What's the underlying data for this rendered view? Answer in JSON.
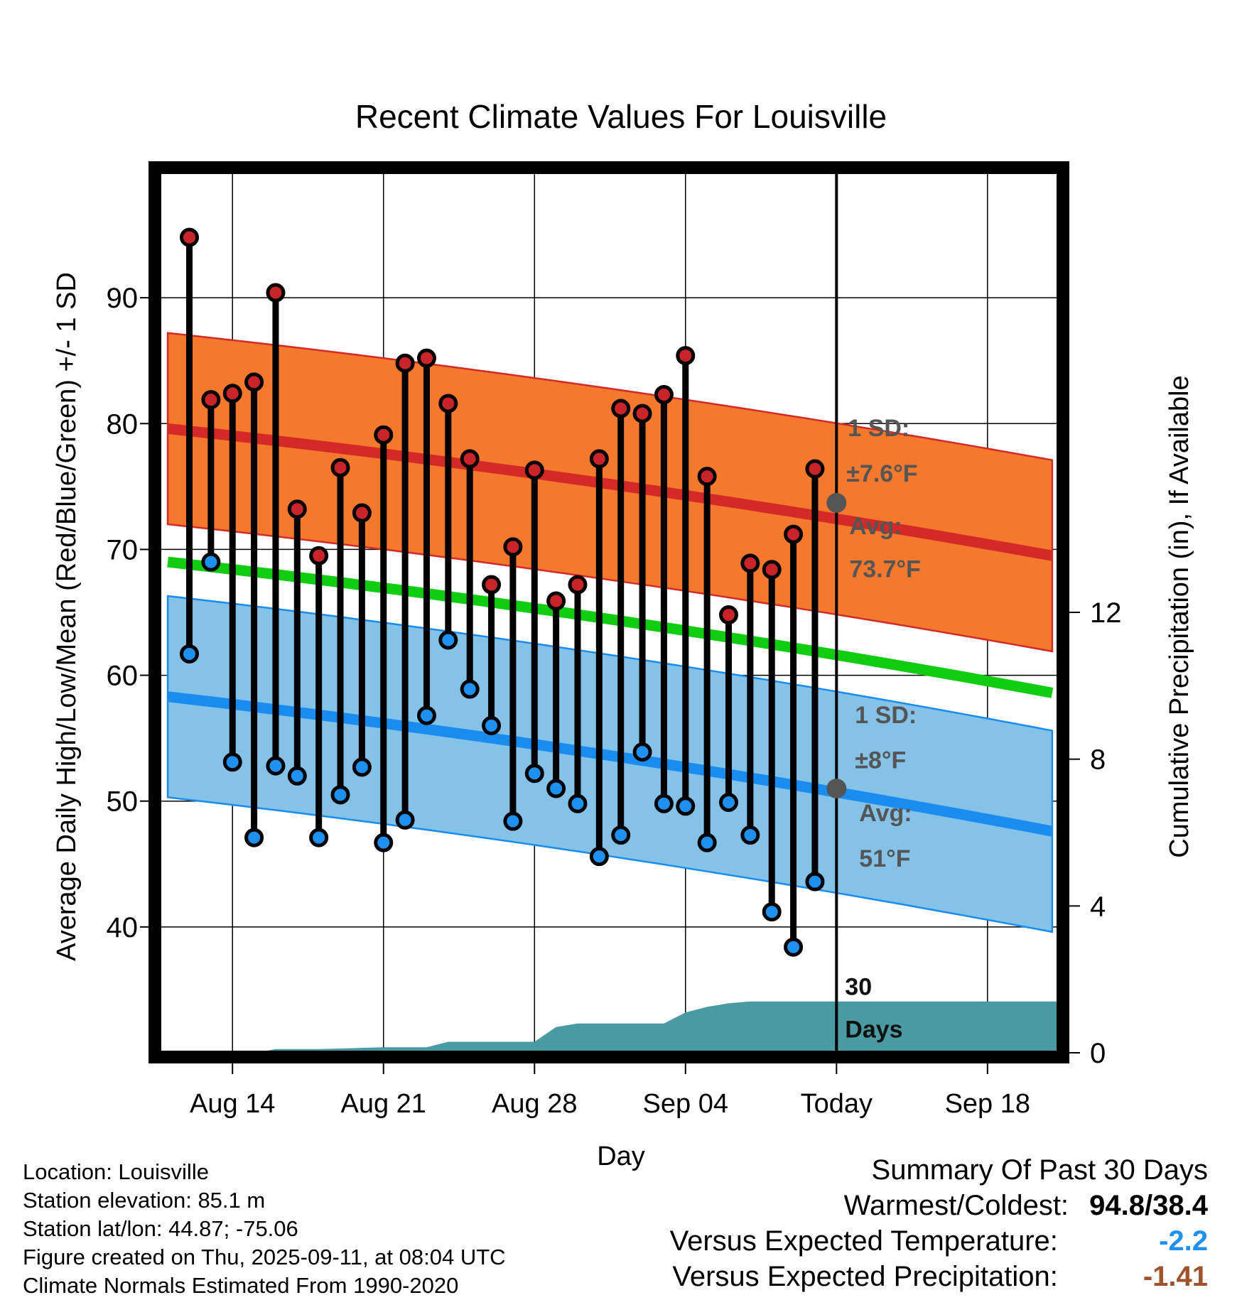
{
  "chart_data": {
    "type": "line",
    "title": "Recent Climate Values For Louisville",
    "xlabel": "Day",
    "ylabel": "Average Daily High/Low/Mean (Red/Blue/Green) +/- 1 SD",
    "y2label": "Cumulative Precipitation (in), If Available",
    "x_range_days": [
      -31.4,
      10.3
    ],
    "ylim": [
      30,
      100
    ],
    "y2lim": [
      0,
      24
    ],
    "x_ticks": [
      {
        "day": -28,
        "label": "Aug 14"
      },
      {
        "day": -21,
        "label": "Aug 21"
      },
      {
        "day": -14,
        "label": "Aug 28"
      },
      {
        "day": -7,
        "label": "Sep 04"
      },
      {
        "day": 0,
        "label": "Today"
      },
      {
        "day": 7,
        "label": "Sep 18"
      }
    ],
    "y_ticks": [
      40,
      50,
      60,
      70,
      80,
      90
    ],
    "y2_ticks": [
      0,
      4,
      8,
      12
    ],
    "grid": true,
    "daily_days": [
      -30,
      -29,
      -28,
      -27,
      -26,
      -25,
      -24,
      -23,
      -22,
      -21,
      -20,
      -19,
      -18,
      -17,
      -16,
      -15,
      -14,
      -13,
      -12,
      -11,
      -10,
      -9,
      -8,
      -7,
      -6,
      -5,
      -4,
      -3,
      -2,
      -1
    ],
    "daily_highs": [
      94.8,
      81.9,
      82.4,
      83.3,
      90.4,
      73.2,
      69.5,
      76.5,
      72.9,
      79.1,
      84.8,
      85.2,
      81.6,
      77.2,
      67.2,
      70.2,
      76.3,
      65.9,
      67.2,
      77.2,
      81.2,
      80.8,
      82.3,
      85.4,
      75.8,
      64.8,
      68.9,
      68.4,
      71.2,
      76.4
    ],
    "daily_lows": [
      61.7,
      69.0,
      53.1,
      47.1,
      52.8,
      52.0,
      47.1,
      50.5,
      52.7,
      46.7,
      48.5,
      56.8,
      62.8,
      58.9,
      56.0,
      48.4,
      52.2,
      51.0,
      49.8,
      45.6,
      47.3,
      53.9,
      49.8,
      49.6,
      46.7,
      49.9,
      47.3,
      41.2,
      38.4,
      43.6
    ],
    "normal_days": [
      -31,
      10
    ],
    "normal_high": {
      "start": 79.6,
      "end": 69.5,
      "sd": 7.6
    },
    "normal_low": {
      "start": 58.3,
      "end": 47.6,
      "sd": 8.0
    },
    "normal_mean": {
      "start": 69.0,
      "end": 58.6
    },
    "precip_cumulative": {
      "days": [
        -31,
        -27,
        -26,
        -24,
        -21,
        -19,
        -18,
        -14,
        -13,
        -12,
        -8,
        -7,
        -6,
        -5,
        -4,
        10.3
      ],
      "values": [
        0,
        0,
        0.1,
        0.1,
        0.15,
        0.15,
        0.3,
        0.3,
        0.7,
        0.8,
        0.8,
        1.1,
        1.25,
        1.35,
        1.4,
        1.4
      ]
    },
    "today_marker": {
      "day": 0,
      "label": "30 Days"
    },
    "annotations": {
      "high_sd_line1": "1 SD:",
      "high_sd_line2": "±7.6°F",
      "high_avg_line1": "Avg:",
      "high_avg_line2": "73.7°F",
      "low_sd_line1": "1 SD:",
      "low_sd_line2": "±8°F",
      "low_avg_line1": "Avg:",
      "low_avg_line2": "51°F",
      "today_high_avg": 73.7,
      "today_low_avg": 51.0
    },
    "colors": {
      "high_band": "#f5792d",
      "high_line": "#d42a27",
      "low_band": "#85c2e8",
      "low_line": "#1a8cf0",
      "mean_line": "#11cc11",
      "precip": "#4a9aa3",
      "high_dot": "#c9242a",
      "low_dot": "#1e90ee",
      "annotation": "#555555"
    }
  },
  "footer": {
    "location": "Location: Louisville",
    "elevation": "Station elevation: 85.1 m",
    "latlon": "Station lat/lon: 44.87; -75.06",
    "created": "Figure created on Thu, 2025-09-11, at 08:04 UTC",
    "normals": "Climate Normals Estimated From 1990-2020"
  },
  "summary": {
    "title": "Summary Of Past 30 Days",
    "warm_cold_label": "Warmest/Coldest:",
    "warm_cold_value": "94.8/38.4",
    "temp_label": "Versus Expected Temperature:",
    "temp_value": "-2.2",
    "temp_color": "#1e90ee",
    "precip_label": "Versus Expected Precipitation:",
    "precip_value": "-1.41",
    "precip_color": "#a0522d"
  }
}
